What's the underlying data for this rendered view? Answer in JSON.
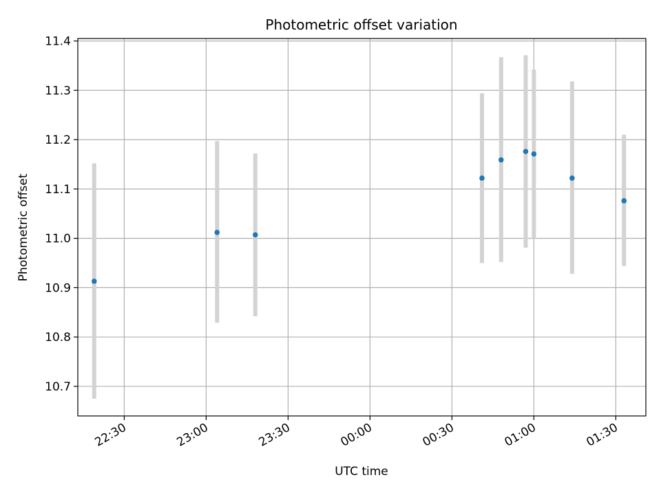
{
  "chart_data": {
    "type": "scatter",
    "title": "Photometric offset variation",
    "xlabel": "UTC time",
    "ylabel": "Photometric offset",
    "xaxis_type": "time",
    "xlim": [
      "22:13",
      "01:41"
    ],
    "ylim": [
      10.64,
      11.405
    ],
    "grid": true,
    "x_ticks": [
      "22:30",
      "23:00",
      "23:30",
      "00:00",
      "00:30",
      "01:00",
      "01:30"
    ],
    "y_ticks": [
      10.7,
      10.8,
      10.9,
      11.0,
      11.1,
      11.2,
      11.3,
      11.4
    ],
    "y_tick_labels": [
      "10.7",
      "10.8",
      "10.9",
      "11.0",
      "11.1",
      "11.2",
      "11.3",
      "11.4"
    ],
    "marker_color": "#1f77b4",
    "errorbar_color": "#d3d3d3",
    "points": [
      {
        "x": "22:19",
        "y": 10.913,
        "ylow": 10.675,
        "yhigh": 11.152
      },
      {
        "x": "23:04",
        "y": 11.012,
        "ylow": 10.829,
        "yhigh": 11.197
      },
      {
        "x": "23:18",
        "y": 11.007,
        "ylow": 10.842,
        "yhigh": 11.172
      },
      {
        "x": "00:41",
        "y": 11.122,
        "ylow": 10.95,
        "yhigh": 11.294
      },
      {
        "x": "00:48",
        "y": 11.159,
        "ylow": 10.952,
        "yhigh": 11.367
      },
      {
        "x": "00:57",
        "y": 11.176,
        "ylow": 10.981,
        "yhigh": 11.371
      },
      {
        "x": "01:00",
        "y": 11.171,
        "ylow": 11.0,
        "yhigh": 11.342
      },
      {
        "x": "01:14",
        "y": 11.122,
        "ylow": 10.928,
        "yhigh": 11.318
      },
      {
        "x": "01:33",
        "y": 11.076,
        "ylow": 10.944,
        "yhigh": 11.21
      }
    ]
  }
}
